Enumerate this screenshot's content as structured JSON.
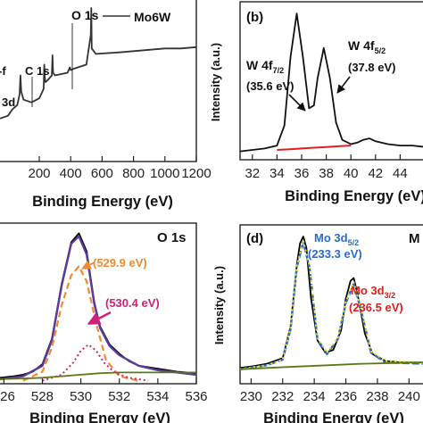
{
  "chart_data": [
    {
      "panel": "a",
      "type": "line",
      "xlabel": "Binding Energy (eV)",
      "ylabel": "",
      "xlim": [
        -50,
        1200
      ],
      "xticks": [
        200,
        400,
        600,
        800,
        1000,
        1200
      ],
      "legend": {
        "label": "Mo6W",
        "position": "top-right"
      },
      "annotations": [
        "O 1s",
        "C 1s",
        "3d",
        "-f"
      ],
      "series": [
        {
          "name": "Mo6W",
          "color": "#333333",
          "x": [
            -50,
            0,
            30,
            60,
            75,
            80,
            85,
            100,
            150,
            200,
            228,
            232,
            236,
            240,
            250,
            280,
            284,
            288,
            300,
            380,
            395,
            400,
            420,
            500,
            528,
            531,
            534,
            560,
            700,
            800,
            900,
            1000,
            1100,
            1200
          ],
          "y": [
            0.18,
            0.2,
            0.25,
            0.28,
            0.36,
            0.5,
            0.38,
            0.32,
            0.3,
            0.33,
            0.4,
            0.58,
            0.48,
            0.45,
            0.46,
            0.5,
            0.65,
            0.52,
            0.5,
            0.52,
            0.56,
            0.54,
            0.55,
            0.58,
            0.8,
            1.0,
            0.7,
            0.66,
            0.67,
            0.68,
            0.69,
            0.7,
            0.7,
            0.71
          ]
        }
      ]
    },
    {
      "panel": "b",
      "label": "(b)",
      "type": "line",
      "xlabel": "Binding Energy (eV)",
      "ylabel": "Intensity (a.u.)",
      "xlim": [
        31,
        46
      ],
      "xticks": [
        32,
        34,
        36,
        38,
        40,
        42,
        44
      ],
      "annotations": [
        {
          "line1": "W 4f",
          "sub1": "7/2",
          "value": "(35.6 eV)"
        },
        {
          "line1": "W 4f",
          "sub1": "5/2",
          "value": "(37.8 eV)"
        }
      ],
      "series": [
        {
          "name": "",
          "color": "#111111",
          "x": [
            31,
            32,
            33,
            34,
            34.6,
            35.1,
            35.6,
            36.1,
            36.6,
            37.0,
            37.3,
            37.8,
            38.3,
            38.8,
            39.3,
            40,
            40.5,
            41,
            41.5,
            42,
            43,
            44,
            45,
            46
          ],
          "y": [
            0.04,
            0.05,
            0.06,
            0.08,
            0.22,
            0.7,
            1.0,
            0.7,
            0.34,
            0.36,
            0.55,
            0.76,
            0.55,
            0.24,
            0.12,
            0.09,
            0.1,
            0.12,
            0.13,
            0.11,
            0.09,
            0.08,
            0.08,
            0.07
          ]
        },
        {
          "name": "",
          "color": "#e02020",
          "x": [
            34,
            35,
            36,
            37,
            38,
            39,
            40
          ],
          "y": [
            0.05,
            0.055,
            0.06,
            0.065,
            0.07,
            0.075,
            0.08
          ]
        }
      ]
    },
    {
      "panel": "c",
      "type": "line",
      "xlabel": "Binding Energy (eV)",
      "ylabel": "",
      "title": "O 1s",
      "xlim": [
        525.8,
        536
      ],
      "xticks": [
        526,
        528,
        530,
        532,
        534,
        536
      ],
      "annotations": [
        "(529.9 eV)",
        "(530.4 eV)"
      ],
      "series": [
        {
          "name": "",
          "color": "#000000",
          "x": [
            525.8,
            526.5,
            527,
            527.5,
            528,
            528.5,
            529,
            529.5,
            529.9,
            530.3,
            530.7,
            531,
            531.5,
            532,
            532.5,
            533,
            534,
            535,
            536
          ],
          "y": [
            0.04,
            0.05,
            0.06,
            0.08,
            0.13,
            0.3,
            0.66,
            0.94,
            1.0,
            0.88,
            0.54,
            0.38,
            0.26,
            0.2,
            0.15,
            0.12,
            0.1,
            0.08,
            0.07
          ]
        },
        {
          "name": "",
          "color": "#5a3a9a",
          "x": [
            525.8,
            527,
            528,
            528.5,
            529,
            529.5,
            529.9,
            530.3,
            530.7,
            531,
            531.5,
            532,
            533,
            534,
            536
          ],
          "y": [
            0.03,
            0.05,
            0.12,
            0.29,
            0.65,
            0.93,
            0.98,
            0.86,
            0.53,
            0.37,
            0.25,
            0.19,
            0.12,
            0.09,
            0.06
          ]
        },
        {
          "name": "",
          "color": "#f08a30",
          "x": [
            527,
            528,
            528.5,
            529,
            529.5,
            529.9,
            530.3,
            530.8,
            531.3,
            532,
            533
          ],
          "y": [
            0.02,
            0.08,
            0.24,
            0.52,
            0.72,
            0.78,
            0.68,
            0.4,
            0.16,
            0.05,
            0.02
          ]
        },
        {
          "name": "",
          "color": "#d0207a",
          "x": [
            528,
            529,
            529.6,
            530,
            530.4,
            530.8,
            531.2,
            531.8,
            532.5,
            533.5
          ],
          "y": [
            0.02,
            0.06,
            0.14,
            0.22,
            0.26,
            0.22,
            0.14,
            0.07,
            0.04,
            0.02
          ]
        },
        {
          "name": "",
          "color": "#5a7a10",
          "x": [
            525.8,
            527,
            528,
            529,
            530,
            531,
            532,
            533,
            534,
            535,
            536
          ],
          "y": [
            0.03,
            0.035,
            0.04,
            0.05,
            0.06,
            0.07,
            0.075,
            0.075,
            0.075,
            0.075,
            0.075
          ]
        }
      ]
    },
    {
      "panel": "d",
      "label": "(d)",
      "type": "line",
      "xlabel": "Binding Energy (eV)",
      "ylabel": "Intensity (a.u.)",
      "title": "M",
      "xlim": [
        229.3,
        241
      ],
      "xticks": [
        230,
        232,
        234,
        236,
        238,
        240
      ],
      "annotations": [
        {
          "line1": "Mo 3d",
          "sub1": "5/2",
          "value": "(233.3 eV)",
          "color": "#2a6ad0"
        },
        {
          "line1": "Mo 3d",
          "sub1": "3/2",
          "value": "(236.5 eV)",
          "color": "#e02020"
        }
      ],
      "series": [
        {
          "name": "",
          "color": "#000000",
          "x": [
            229.3,
            230,
            231,
            232,
            232.5,
            232.9,
            233.1,
            233.3,
            233.5,
            233.8,
            234.2,
            234.7,
            235.2,
            235.7,
            236.0,
            236.3,
            236.5,
            236.8,
            237.2,
            237.7,
            238.5,
            239.5,
            241
          ],
          "y": [
            0.05,
            0.06,
            0.08,
            0.12,
            0.35,
            0.8,
            0.95,
            1.0,
            0.92,
            0.55,
            0.25,
            0.16,
            0.18,
            0.32,
            0.55,
            0.68,
            0.7,
            0.55,
            0.3,
            0.15,
            0.1,
            0.09,
            0.09
          ]
        },
        {
          "name": "",
          "color": "#2a6ad0",
          "x": [
            229.3,
            231,
            232,
            232.5,
            232.9,
            233.3,
            233.7,
            234.2,
            234.8,
            235.5,
            236.0,
            236.5,
            237.0,
            237.6,
            238.5,
            241
          ],
          "y": [
            0.04,
            0.07,
            0.11,
            0.33,
            0.78,
            0.96,
            0.78,
            0.26,
            0.15,
            0.26,
            0.52,
            0.66,
            0.45,
            0.16,
            0.09,
            0.08
          ]
        },
        {
          "name": "",
          "color": "#f0e020",
          "x": [
            229.3,
            231,
            232,
            232.5,
            232.9,
            233.3,
            233.7,
            234.2,
            234.8,
            235.5,
            236.0,
            236.5,
            237.0,
            237.6,
            238.5,
            241
          ],
          "y": [
            0.04,
            0.07,
            0.11,
            0.34,
            0.79,
            0.97,
            0.79,
            0.27,
            0.16,
            0.27,
            0.53,
            0.67,
            0.46,
            0.17,
            0.1,
            0.09
          ]
        },
        {
          "name": "",
          "color": "#5a7a10",
          "x": [
            229.3,
            231,
            233,
            235,
            237,
            239,
            241
          ],
          "y": [
            0.04,
            0.05,
            0.06,
            0.07,
            0.08,
            0.085,
            0.09
          ]
        }
      ]
    }
  ]
}
